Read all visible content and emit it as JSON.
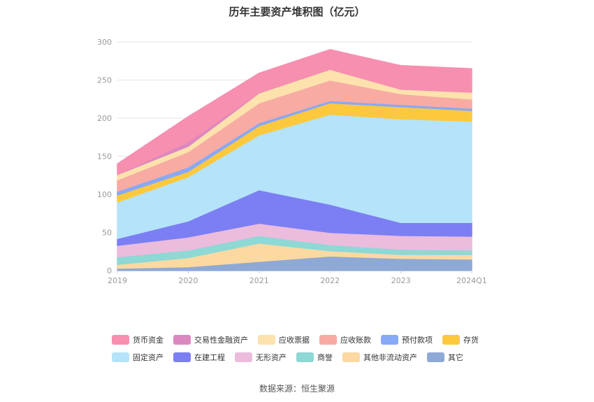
{
  "title": "历年主要资产堆积图（亿元）",
  "source": "数据来源：恒生聚源",
  "chart_data": {
    "type": "area",
    "stacked": true,
    "categories": [
      "2019",
      "2020",
      "2021",
      "2022",
      "2023",
      "2024Q1"
    ],
    "y_ticks": [
      "0",
      "50",
      "100",
      "150",
      "200",
      "250",
      "300"
    ],
    "ylim": [
      0,
      300
    ],
    "grid": true,
    "legend_position": "bottom",
    "series": [
      {
        "name": "其它",
        "color": "#8fa9d6",
        "values": [
          3,
          5,
          12,
          19,
          16,
          15
        ]
      },
      {
        "name": "其他非流动资产",
        "color": "#fcd9a0",
        "values": [
          5,
          12,
          24,
          7,
          5,
          6
        ]
      },
      {
        "name": "商誉",
        "color": "#8ed8d6",
        "values": [
          10,
          10,
          10,
          8,
          7,
          6
        ]
      },
      {
        "name": "无形资产",
        "color": "#ecbcdc",
        "values": [
          15,
          17,
          16,
          16,
          18,
          18
        ]
      },
      {
        "name": "在建工程",
        "color": "#7b7ff3",
        "values": [
          9,
          21,
          44,
          37,
          17,
          18
        ]
      },
      {
        "name": "固定资产",
        "color": "#b5e3fa",
        "values": [
          48,
          58,
          72,
          118,
          136,
          133
        ]
      },
      {
        "name": "存货",
        "color": "#fcc93e",
        "values": [
          9,
          7,
          12,
          15,
          16,
          14
        ]
      },
      {
        "name": "预付款项",
        "color": "#88a9f6",
        "values": [
          5,
          6,
          4,
          3,
          3,
          3
        ]
      },
      {
        "name": "应收账款",
        "color": "#f8aba3",
        "values": [
          15,
          20,
          26,
          27,
          14,
          12
        ]
      },
      {
        "name": "应收票据",
        "color": "#fde2ad",
        "values": [
          7,
          7,
          13,
          14,
          6,
          9
        ]
      },
      {
        "name": "交易性金融资产",
        "color": "#dc88c0",
        "values": [
          0,
          6,
          0,
          0,
          0,
          0
        ]
      },
      {
        "name": "货币资金",
        "color": "#f78fb0",
        "values": [
          14,
          33,
          26,
          26,
          31,
          31
        ]
      }
    ],
    "legend_order": [
      "货币资金",
      "交易性金融资产",
      "应收票据",
      "应收账款",
      "预付款项",
      "存货",
      "固定资产",
      "在建工程",
      "无形资产",
      "商誉",
      "其他非流动资产",
      "其它"
    ]
  }
}
